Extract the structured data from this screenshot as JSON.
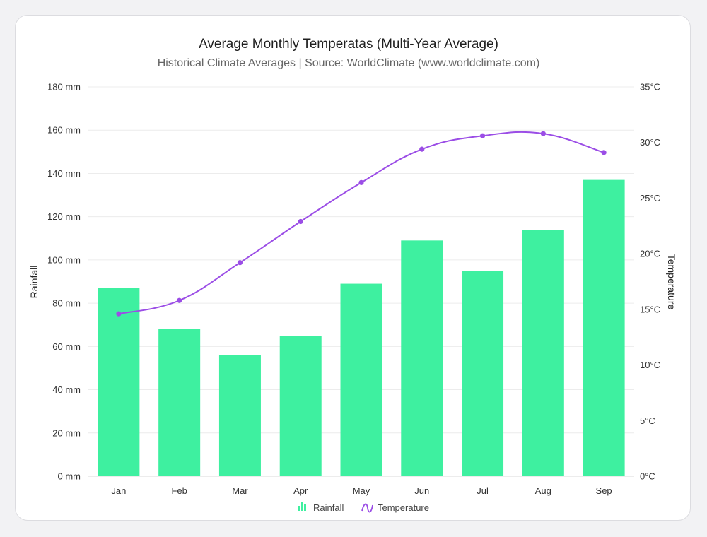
{
  "chart_data": {
    "type": "bar",
    "title": "Average Monthly Temperatas (Multi-Year Average)",
    "subtitle": "Historical Climate Averages | Source: WorldClimate (www.worldclimate.com)",
    "categories": [
      "Jan",
      "Feb",
      "Mar",
      "Apr",
      "May",
      "Jun",
      "Jul",
      "Aug",
      "Sep"
    ],
    "series": [
      {
        "name": "Rainfall",
        "type": "bar",
        "axis": "left",
        "color": "#3ef0a0",
        "values": [
          87,
          68,
          56,
          65,
          89,
          109,
          95,
          114,
          137
        ]
      },
      {
        "name": "Temperature",
        "type": "line",
        "axis": "right",
        "color": "#9b4de6",
        "values": [
          14.6,
          15.8,
          19.2,
          22.9,
          26.4,
          29.4,
          30.6,
          30.8,
          29.1
        ]
      }
    ],
    "ylabel": "Rainfall",
    "y2label": "Temperature",
    "ylim": [
      0,
      180
    ],
    "y2lim": [
      0,
      35
    ],
    "yticks": [
      "0 mm",
      "20 mm",
      "40 mm",
      "60 mm",
      "80 mm",
      "100 mm",
      "120 mm",
      "140 mm",
      "160 mm",
      "180 mm"
    ],
    "y2ticks": [
      "0°C",
      "5°C",
      "10°C",
      "15°C",
      "20°C",
      "25°C",
      "30°C",
      "35°C"
    ],
    "grid": true,
    "legend_position": "bottom"
  }
}
